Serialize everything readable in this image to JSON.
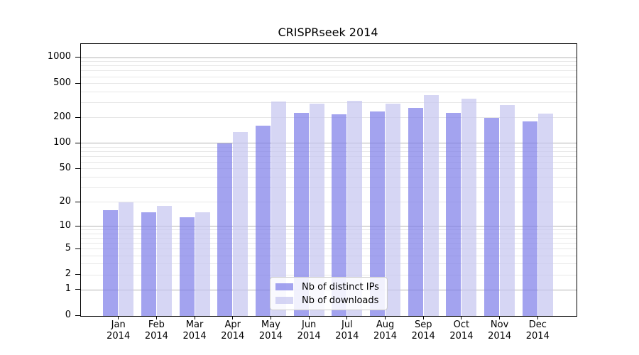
{
  "title": "CRISPRseek 2014",
  "colors": {
    "ips_bar": "#7c7ce8",
    "downloads_bar": "#c5c5f0",
    "bar_alpha": 0.7,
    "grid_major": "#b2b2b2",
    "grid_minor": "#e7e7e7",
    "axis_line": "#000000",
    "legend_border": "#cccccc",
    "text": "#000000"
  },
  "legend": {
    "items": [
      {
        "label": "Nb of distinct IPs",
        "series_key": "ips"
      },
      {
        "label": "Nb of downloads",
        "series_key": "downloads"
      }
    ]
  },
  "chart_data": {
    "type": "bar",
    "title": "CRISPRseek 2014",
    "categories": [
      "Jan 2014",
      "Feb 2014",
      "Mar 2014",
      "Apr 2014",
      "May 2014",
      "Jun 2014",
      "Jul 2014",
      "Aug 2014",
      "Sep 2014",
      "Oct 2014",
      "Nov 2014",
      "Dec 2014"
    ],
    "series": [
      {
        "name": "Nb of distinct IPs",
        "values": [
          16,
          15,
          13,
          100,
          161,
          227,
          218,
          237,
          259,
          227,
          200,
          181
        ]
      },
      {
        "name": "Nb of downloads",
        "values": [
          20,
          18,
          15,
          137,
          306,
          292,
          312,
          291,
          365,
          334,
          279,
          223
        ]
      }
    ],
    "xlabel": "",
    "ylabel": "",
    "y_scale": "log1p",
    "ylim": [
      0,
      1440
    ],
    "y_ticks": [
      0,
      1,
      2,
      5,
      10,
      20,
      50,
      100,
      200,
      500,
      1000
    ],
    "y_minor_gridlines": [
      2,
      3,
      4,
      5,
      6,
      7,
      8,
      9,
      20,
      30,
      40,
      50,
      60,
      70,
      80,
      90,
      200,
      300,
      400,
      500,
      600,
      700,
      800,
      900
    ],
    "y_major_gridlines": [
      1,
      10,
      100,
      1000
    ],
    "grid": "horizontal, major dark + minor light",
    "legend_position": "inside plot, lower middle"
  }
}
